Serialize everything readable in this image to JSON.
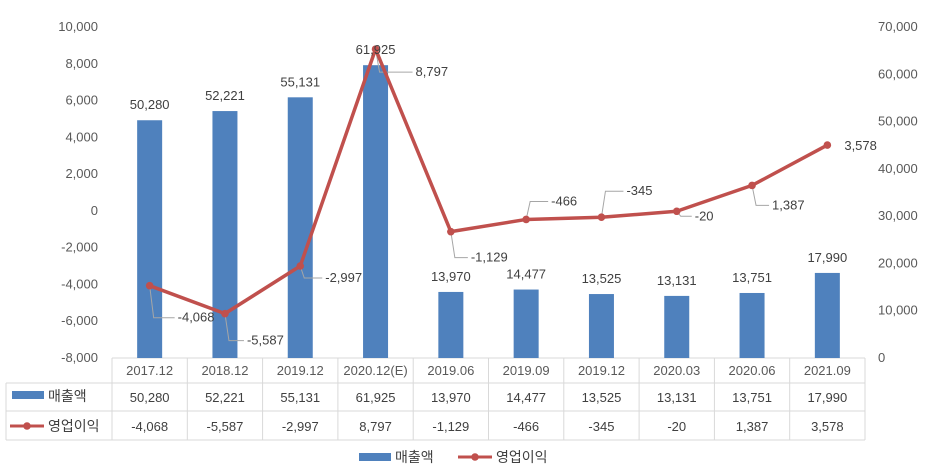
{
  "chart_data": {
    "type": "bar+line",
    "title": "",
    "categories": [
      "2017.12",
      "2018.12",
      "2019.12",
      "2020.12(E)",
      "2019.06",
      "2019.09",
      "2019.12",
      "2020.03",
      "2020.06",
      "2021.09"
    ],
    "series": [
      {
        "name": "매출액",
        "type": "bar",
        "axis": "right",
        "color": "#4f81bd",
        "values": [
          50280,
          52221,
          55131,
          61925,
          13970,
          14477,
          13525,
          13131,
          13751,
          17990
        ],
        "labels": [
          "50,280",
          "52,221",
          "55,131",
          "61,925",
          "13,970",
          "14,477",
          "13,525",
          "13,131",
          "13,751",
          "17,990"
        ]
      },
      {
        "name": "영업이익",
        "type": "line",
        "axis": "left",
        "color": "#c0504d",
        "values": [
          -4068,
          -5587,
          -2997,
          8797,
          -1129,
          -466,
          -345,
          -20,
          1387,
          3578
        ],
        "labels": [
          "-4,068",
          "-5,587",
          "-2,997",
          "8,797",
          "-1,129",
          "-466",
          "-345",
          "-20",
          "1,387",
          "3,578"
        ]
      }
    ],
    "y_left": {
      "min": -8000,
      "max": 10000,
      "step": 2000,
      "ticks": [
        "10,000",
        "8,000",
        "6,000",
        "4,000",
        "2,000",
        "0",
        "-2,000",
        "-4,000",
        "-6,000",
        "-8,000"
      ]
    },
    "y_right": {
      "min": 0,
      "max": 70000,
      "step": 10000,
      "ticks": [
        "70,000",
        "60,000",
        "50,000",
        "40,000",
        "30,000",
        "20,000",
        "10,000",
        "0"
      ]
    },
    "legend": {
      "position": "bottom",
      "items": [
        "매출액",
        "영업이익"
      ]
    },
    "data_table": true,
    "grid": false
  }
}
